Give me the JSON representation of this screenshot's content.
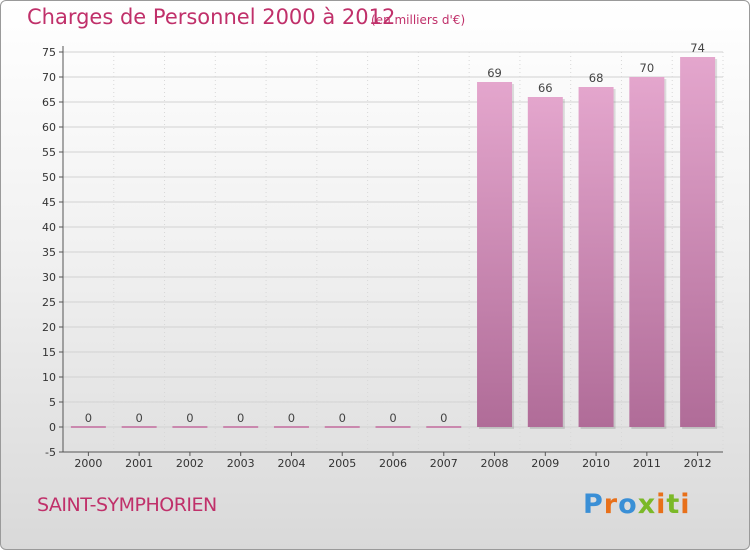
{
  "title": "Charges de Personnel 2000 à 2012",
  "subtitle": "(en milliers d'€)",
  "commune": "SAINT-SYMPHORIEN",
  "logo": {
    "letters": [
      "P",
      "r",
      "o",
      "x",
      "i",
      "t",
      "i"
    ],
    "colors": [
      "#3a8fd6",
      "#e8701a",
      "#3a8fd6",
      "#7bb928",
      "#e8701a",
      "#7bb928",
      "#e8701a"
    ]
  },
  "colors": {
    "accent": "#c0306a",
    "bar_top": "#e4a6cd",
    "bar_bottom": "#b06c98",
    "zero_line": "#c26a9c"
  },
  "chart_data": {
    "type": "bar",
    "title": "Charges de Personnel 2000 à 2012",
    "subtitle": "(en milliers d'€)",
    "categories": [
      "2000",
      "2001",
      "2002",
      "2003",
      "2004",
      "2005",
      "2006",
      "2007",
      "2008",
      "2009",
      "2010",
      "2011",
      "2012"
    ],
    "values": [
      0,
      0,
      0,
      0,
      0,
      0,
      0,
      0,
      69,
      66,
      68,
      70,
      74
    ],
    "data_labels": [
      "0",
      "0",
      "0",
      "0",
      "0",
      "0",
      "0",
      "0",
      "69",
      "66",
      "68",
      "70",
      "74"
    ],
    "ylim": [
      -5,
      75
    ],
    "yticks": [
      -5,
      0,
      5,
      10,
      15,
      20,
      25,
      30,
      35,
      40,
      45,
      50,
      55,
      60,
      65,
      70,
      75
    ],
    "grid": true,
    "legend": "none"
  }
}
